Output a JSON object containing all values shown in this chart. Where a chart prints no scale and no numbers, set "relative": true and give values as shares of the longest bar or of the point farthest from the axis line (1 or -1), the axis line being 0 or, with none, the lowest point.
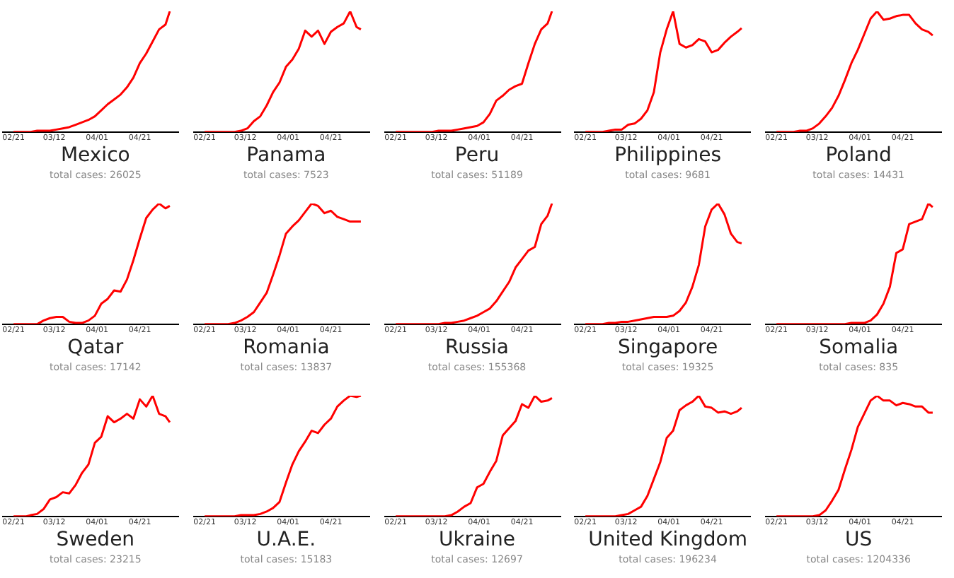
{
  "chart_data": [
    {
      "type": "line",
      "title": "Mexico",
      "subtitle": "total cases: 26025",
      "relative": true,
      "x": [
        "--02-21",
        "--02-24",
        "--02-27",
        "--03-01",
        "--03-04",
        "--03-07",
        "--03-10",
        "--03-13",
        "--03-16",
        "--03-19",
        "--03-22",
        "--03-25",
        "--03-28",
        "--03-31",
        "--04-03",
        "--04-06",
        "--04-09",
        "--04-12",
        "--04-15",
        "--04-18",
        "--04-21",
        "--04-24",
        "--04-27",
        "--04-30",
        "--05-03",
        "--05-05"
      ],
      "xlim": [
        "--02-16",
        "--05-09"
      ],
      "xticks": [
        {
          "value": "--02-21",
          "label": "02/21"
        },
        {
          "value": "--03-12",
          "label": "03/12"
        },
        {
          "value": "--04-01",
          "label": "04/01"
        },
        {
          "value": "--04-21",
          "label": "04/21"
        }
      ],
      "series": [
        {
          "color": "#ff0000",
          "values": [
            0,
            0,
            0,
            0,
            0.01,
            0.01,
            0.01,
            0.02,
            0.03,
            0.04,
            0.06,
            0.08,
            0.1,
            0.13,
            0.18,
            0.23,
            0.27,
            0.31,
            0.37,
            0.45,
            0.57,
            0.65,
            0.75,
            0.85,
            0.89,
            1
          ]
        }
      ]
    },
    {
      "type": "line",
      "title": "Panama",
      "subtitle": "total cases: 7523",
      "relative": true,
      "x": [
        "--02-21",
        "--02-24",
        "--02-27",
        "--03-01",
        "--03-04",
        "--03-07",
        "--03-10",
        "--03-13",
        "--03-16",
        "--03-19",
        "--03-22",
        "--03-25",
        "--03-28",
        "--03-31",
        "--04-03",
        "--04-06",
        "--04-09",
        "--04-12",
        "--04-15",
        "--04-18",
        "--04-21",
        "--04-24",
        "--04-27",
        "--04-30",
        "--05-03",
        "--05-05"
      ],
      "xlim": [
        "--02-16",
        "--05-09"
      ],
      "xticks": [
        {
          "value": "--02-21",
          "label": "02/21"
        },
        {
          "value": "--03-12",
          "label": "03/12"
        },
        {
          "value": "--04-01",
          "label": "04/01"
        },
        {
          "value": "--04-21",
          "label": "04/21"
        }
      ],
      "series": [
        {
          "color": "#ff0000",
          "values": [
            0,
            0,
            0,
            0,
            0,
            0,
            0.01,
            0.03,
            0.09,
            0.13,
            0.22,
            0.33,
            0.41,
            0.54,
            0.6,
            0.69,
            0.84,
            0.79,
            0.84,
            0.73,
            0.83,
            0.87,
            0.9,
            1,
            0.87,
            0.85
          ]
        }
      ]
    },
    {
      "type": "line",
      "title": "Peru",
      "subtitle": "total cases: 51189",
      "relative": true,
      "x": [
        "--02-21",
        "--02-24",
        "--02-27",
        "--03-01",
        "--03-04",
        "--03-07",
        "--03-10",
        "--03-13",
        "--03-16",
        "--03-19",
        "--03-22",
        "--03-25",
        "--03-28",
        "--03-31",
        "--04-03",
        "--04-06",
        "--04-09",
        "--04-12",
        "--04-15",
        "--04-18",
        "--04-21",
        "--04-24",
        "--04-27",
        "--04-30",
        "--05-03",
        "--05-05"
      ],
      "xlim": [
        "--02-16",
        "--05-09"
      ],
      "xticks": [
        {
          "value": "--02-21",
          "label": "02/21"
        },
        {
          "value": "--03-12",
          "label": "03/12"
        },
        {
          "value": "--04-01",
          "label": "04/01"
        },
        {
          "value": "--04-21",
          "label": "04/21"
        }
      ],
      "series": [
        {
          "color": "#ff0000",
          "values": [
            0,
            0,
            0,
            0,
            0,
            0,
            0,
            0.01,
            0.01,
            0.01,
            0.02,
            0.03,
            0.04,
            0.05,
            0.08,
            0.15,
            0.26,
            0.3,
            0.35,
            0.38,
            0.4,
            0.57,
            0.73,
            0.85,
            0.9,
            1
          ]
        }
      ]
    },
    {
      "type": "line",
      "title": "Philippines",
      "subtitle": "total cases: 9681",
      "relative": true,
      "x": [
        "--02-21",
        "--02-24",
        "--02-27",
        "--03-01",
        "--03-04",
        "--03-07",
        "--03-10",
        "--03-13",
        "--03-16",
        "--03-19",
        "--03-22",
        "--03-25",
        "--03-28",
        "--03-31",
        "--04-03",
        "--04-06",
        "--04-09",
        "--04-12",
        "--04-15",
        "--04-18",
        "--04-21",
        "--04-24",
        "--04-27",
        "--04-30",
        "--05-03",
        "--05-05"
      ],
      "xlim": [
        "--02-16",
        "--05-09"
      ],
      "xticks": [
        {
          "value": "--02-21",
          "label": "02/21"
        },
        {
          "value": "--03-12",
          "label": "03/12"
        },
        {
          "value": "--04-01",
          "label": "04/01"
        },
        {
          "value": "--04-21",
          "label": "04/21"
        }
      ],
      "series": [
        {
          "color": "#ff0000",
          "values": [
            0,
            0,
            0,
            0,
            0.01,
            0.02,
            0.02,
            0.06,
            0.07,
            0.11,
            0.18,
            0.33,
            0.66,
            0.85,
            1,
            0.73,
            0.7,
            0.72,
            0.77,
            0.75,
            0.66,
            0.68,
            0.74,
            0.79,
            0.83,
            0.86
          ]
        }
      ]
    },
    {
      "type": "line",
      "title": "Poland",
      "subtitle": "total cases: 14431",
      "relative": true,
      "x": [
        "--02-21",
        "--02-24",
        "--02-27",
        "--03-01",
        "--03-04",
        "--03-07",
        "--03-10",
        "--03-13",
        "--03-16",
        "--03-19",
        "--03-22",
        "--03-25",
        "--03-28",
        "--03-31",
        "--04-03",
        "--04-06",
        "--04-09",
        "--04-12",
        "--04-15",
        "--04-18",
        "--04-21",
        "--04-24",
        "--04-27",
        "--04-30",
        "--05-03",
        "--05-05"
      ],
      "xlim": [
        "--02-16",
        "--05-09"
      ],
      "xticks": [
        {
          "value": "--02-21",
          "label": "02/21"
        },
        {
          "value": "--03-12",
          "label": "03/12"
        },
        {
          "value": "--04-01",
          "label": "04/01"
        },
        {
          "value": "--04-21",
          "label": "04/21"
        }
      ],
      "series": [
        {
          "color": "#ff0000",
          "values": [
            0,
            0,
            0,
            0,
            0.01,
            0.01,
            0.03,
            0.07,
            0.13,
            0.2,
            0.3,
            0.43,
            0.57,
            0.68,
            0.81,
            0.94,
            1,
            0.93,
            0.94,
            0.96,
            0.97,
            0.97,
            0.9,
            0.85,
            0.83,
            0.8
          ]
        }
      ]
    },
    {
      "type": "line",
      "title": "Qatar",
      "subtitle": "total cases: 17142",
      "relative": true,
      "x": [
        "--02-21",
        "--02-24",
        "--02-27",
        "--03-01",
        "--03-04",
        "--03-07",
        "--03-10",
        "--03-13",
        "--03-16",
        "--03-19",
        "--03-22",
        "--03-25",
        "--03-28",
        "--03-31",
        "--04-03",
        "--04-06",
        "--04-09",
        "--04-12",
        "--04-15",
        "--04-18",
        "--04-21",
        "--04-24",
        "--04-27",
        "--04-30",
        "--05-03",
        "--05-05"
      ],
      "xlim": [
        "--02-16",
        "--05-09"
      ],
      "xticks": [
        {
          "value": "--02-21",
          "label": "02/21"
        },
        {
          "value": "--03-12",
          "label": "03/12"
        },
        {
          "value": "--04-01",
          "label": "04/01"
        },
        {
          "value": "--04-21",
          "label": "04/21"
        }
      ],
      "series": [
        {
          "color": "#ff0000",
          "values": [
            0,
            0,
            0,
            0,
            0,
            0.03,
            0.05,
            0.06,
            0.06,
            0.02,
            0.01,
            0.01,
            0.03,
            0.07,
            0.17,
            0.21,
            0.28,
            0.27,
            0.37,
            0.53,
            0.71,
            0.88,
            0.95,
            1,
            0.96,
            0.98
          ]
        }
      ]
    },
    {
      "type": "line",
      "title": "Romania",
      "subtitle": "total cases: 13837",
      "relative": true,
      "x": [
        "--02-21",
        "--02-24",
        "--02-27",
        "--03-01",
        "--03-04",
        "--03-07",
        "--03-10",
        "--03-13",
        "--03-16",
        "--03-19",
        "--03-22",
        "--03-25",
        "--03-28",
        "--03-31",
        "--04-03",
        "--04-06",
        "--04-09",
        "--04-12",
        "--04-15",
        "--04-18",
        "--04-21",
        "--04-24",
        "--04-27",
        "--04-30",
        "--05-03",
        "--05-05"
      ],
      "xlim": [
        "--02-16",
        "--05-09"
      ],
      "xticks": [
        {
          "value": "--02-21",
          "label": "02/21"
        },
        {
          "value": "--03-12",
          "label": "03/12"
        },
        {
          "value": "--04-01",
          "label": "04/01"
        },
        {
          "value": "--04-21",
          "label": "04/21"
        }
      ],
      "series": [
        {
          "color": "#ff0000",
          "values": [
            0,
            0,
            0,
            0,
            0,
            0.01,
            0.03,
            0.06,
            0.1,
            0.18,
            0.26,
            0.41,
            0.57,
            0.75,
            0.81,
            0.86,
            0.93,
            1,
            0.98,
            0.92,
            0.94,
            0.89,
            0.87,
            0.85,
            0.85,
            0.85
          ]
        }
      ]
    },
    {
      "type": "line",
      "title": "Russia",
      "subtitle": "total cases: 155368",
      "relative": true,
      "x": [
        "--02-21",
        "--02-24",
        "--02-27",
        "--03-01",
        "--03-04",
        "--03-07",
        "--03-10",
        "--03-13",
        "--03-16",
        "--03-19",
        "--03-22",
        "--03-25",
        "--03-28",
        "--03-31",
        "--04-03",
        "--04-06",
        "--04-09",
        "--04-12",
        "--04-15",
        "--04-18",
        "--04-21",
        "--04-24",
        "--04-27",
        "--04-30",
        "--05-03",
        "--05-05"
      ],
      "xlim": [
        "--02-16",
        "--05-09"
      ],
      "xticks": [
        {
          "value": "--02-21",
          "label": "02/21"
        },
        {
          "value": "--03-12",
          "label": "03/12"
        },
        {
          "value": "--04-01",
          "label": "04/01"
        },
        {
          "value": "--04-21",
          "label": "04/21"
        }
      ],
      "series": [
        {
          "color": "#ff0000",
          "values": [
            0,
            0,
            0,
            0,
            0,
            0,
            0,
            0,
            0.01,
            0.01,
            0.02,
            0.03,
            0.05,
            0.07,
            0.1,
            0.13,
            0.19,
            0.27,
            0.35,
            0.47,
            0.54,
            0.61,
            0.64,
            0.83,
            0.9,
            1
          ]
        }
      ]
    },
    {
      "type": "line",
      "title": "Singapore",
      "subtitle": "total cases: 19325",
      "relative": true,
      "x": [
        "--02-21",
        "--02-24",
        "--02-27",
        "--03-01",
        "--03-04",
        "--03-07",
        "--03-10",
        "--03-13",
        "--03-16",
        "--03-19",
        "--03-22",
        "--03-25",
        "--03-28",
        "--03-31",
        "--04-03",
        "--04-06",
        "--04-09",
        "--04-12",
        "--04-15",
        "--04-18",
        "--04-21",
        "--04-24",
        "--04-27",
        "--04-30",
        "--05-03",
        "--05-05"
      ],
      "xlim": [
        "--02-16",
        "--05-09"
      ],
      "xticks": [
        {
          "value": "--02-21",
          "label": "02/21"
        },
        {
          "value": "--03-12",
          "label": "03/12"
        },
        {
          "value": "--04-01",
          "label": "04/01"
        },
        {
          "value": "--04-21",
          "label": "04/21"
        }
      ],
      "series": [
        {
          "color": "#ff0000",
          "values": [
            0,
            0,
            0,
            0,
            0.01,
            0.01,
            0.02,
            0.02,
            0.03,
            0.04,
            0.05,
            0.06,
            0.06,
            0.06,
            0.07,
            0.11,
            0.18,
            0.31,
            0.49,
            0.81,
            0.95,
            1,
            0.91,
            0.75,
            0.68,
            0.67
          ]
        }
      ]
    },
    {
      "type": "line",
      "title": "Somalia",
      "subtitle": "total cases: 835",
      "relative": true,
      "x": [
        "--02-21",
        "--02-24",
        "--02-27",
        "--03-01",
        "--03-04",
        "--03-07",
        "--03-10",
        "--03-13",
        "--03-16",
        "--03-19",
        "--03-22",
        "--03-25",
        "--03-28",
        "--03-31",
        "--04-03",
        "--04-06",
        "--04-09",
        "--04-12",
        "--04-15",
        "--04-18",
        "--04-21",
        "--04-24",
        "--04-27",
        "--04-30",
        "--05-03",
        "--05-05"
      ],
      "xlim": [
        "--02-16",
        "--05-09"
      ],
      "xticks": [
        {
          "value": "--02-21",
          "label": "02/21"
        },
        {
          "value": "--03-12",
          "label": "03/12"
        },
        {
          "value": "--04-01",
          "label": "04/01"
        },
        {
          "value": "--04-21",
          "label": "04/21"
        }
      ],
      "series": [
        {
          "color": "#ff0000",
          "values": [
            0,
            0,
            0,
            0,
            0,
            0,
            0,
            0,
            0,
            0,
            0,
            0,
            0.01,
            0.01,
            0.01,
            0.03,
            0.08,
            0.17,
            0.31,
            0.59,
            0.62,
            0.83,
            0.85,
            0.87,
            1,
            0.97
          ]
        }
      ]
    },
    {
      "type": "line",
      "title": "Sweden",
      "subtitle": "total cases: 23215",
      "relative": true,
      "x": [
        "--02-21",
        "--02-24",
        "--02-27",
        "--03-01",
        "--03-04",
        "--03-07",
        "--03-10",
        "--03-13",
        "--03-16",
        "--03-19",
        "--03-22",
        "--03-25",
        "--03-28",
        "--03-31",
        "--04-03",
        "--04-06",
        "--04-09",
        "--04-12",
        "--04-15",
        "--04-18",
        "--04-21",
        "--04-24",
        "--04-27",
        "--04-30",
        "--05-03",
        "--05-05"
      ],
      "xlim": [
        "--02-16",
        "--05-09"
      ],
      "xticks": [
        {
          "value": "--02-21",
          "label": "02/21"
        },
        {
          "value": "--03-12",
          "label": "03/12"
        },
        {
          "value": "--04-01",
          "label": "04/01"
        },
        {
          "value": "--04-21",
          "label": "04/21"
        }
      ],
      "series": [
        {
          "color": "#ff0000",
          "values": [
            0,
            0,
            0,
            0.01,
            0.02,
            0.06,
            0.14,
            0.16,
            0.2,
            0.19,
            0.26,
            0.36,
            0.43,
            0.61,
            0.66,
            0.83,
            0.78,
            0.81,
            0.85,
            0.81,
            0.97,
            0.91,
            1,
            0.85,
            0.83,
            0.78
          ]
        }
      ]
    },
    {
      "type": "line",
      "title": "U.A.E.",
      "subtitle": "total cases: 15183",
      "relative": true,
      "x": [
        "--02-21",
        "--02-24",
        "--02-27",
        "--03-01",
        "--03-04",
        "--03-07",
        "--03-10",
        "--03-13",
        "--03-16",
        "--03-19",
        "--03-22",
        "--03-25",
        "--03-28",
        "--03-31",
        "--04-03",
        "--04-06",
        "--04-09",
        "--04-12",
        "--04-15",
        "--04-18",
        "--04-21",
        "--04-24",
        "--04-27",
        "--04-30",
        "--05-03",
        "--05-05"
      ],
      "xlim": [
        "--02-16",
        "--05-09"
      ],
      "xticks": [
        {
          "value": "--02-21",
          "label": "02/21"
        },
        {
          "value": "--03-12",
          "label": "03/12"
        },
        {
          "value": "--04-01",
          "label": "04/01"
        },
        {
          "value": "--04-21",
          "label": "04/21"
        }
      ],
      "series": [
        {
          "color": "#ff0000",
          "values": [
            0,
            0,
            0,
            0,
            0,
            0,
            0.01,
            0.01,
            0.01,
            0.02,
            0.04,
            0.07,
            0.12,
            0.28,
            0.43,
            0.54,
            0.62,
            0.71,
            0.69,
            0.76,
            0.81,
            0.91,
            0.96,
            1,
            0.99,
            1
          ]
        }
      ]
    },
    {
      "type": "line",
      "title": "Ukraine",
      "subtitle": "total cases: 12697",
      "relative": true,
      "x": [
        "--02-21",
        "--02-24",
        "--02-27",
        "--03-01",
        "--03-04",
        "--03-07",
        "--03-10",
        "--03-13",
        "--03-16",
        "--03-19",
        "--03-22",
        "--03-25",
        "--03-28",
        "--03-31",
        "--04-03",
        "--04-06",
        "--04-09",
        "--04-12",
        "--04-15",
        "--04-18",
        "--04-21",
        "--04-24",
        "--04-27",
        "--04-30",
        "--05-03",
        "--05-05"
      ],
      "xlim": [
        "--02-16",
        "--05-09"
      ],
      "xticks": [
        {
          "value": "--02-21",
          "label": "02/21"
        },
        {
          "value": "--03-12",
          "label": "03/12"
        },
        {
          "value": "--04-01",
          "label": "04/01"
        },
        {
          "value": "--04-21",
          "label": "04/21"
        }
      ],
      "series": [
        {
          "color": "#ff0000",
          "values": [
            0,
            0,
            0,
            0,
            0,
            0,
            0,
            0,
            0,
            0.01,
            0.04,
            0.08,
            0.11,
            0.24,
            0.27,
            0.37,
            0.46,
            0.67,
            0.73,
            0.79,
            0.93,
            0.9,
            1,
            0.95,
            0.96,
            0.98
          ]
        }
      ]
    },
    {
      "type": "line",
      "title": "United Kingdom",
      "subtitle": "total cases: 196234",
      "relative": true,
      "x": [
        "--02-21",
        "--02-24",
        "--02-27",
        "--03-01",
        "--03-04",
        "--03-07",
        "--03-10",
        "--03-13",
        "--03-16",
        "--03-19",
        "--03-22",
        "--03-25",
        "--03-28",
        "--03-31",
        "--04-03",
        "--04-06",
        "--04-09",
        "--04-12",
        "--04-15",
        "--04-18",
        "--04-21",
        "--04-24",
        "--04-27",
        "--04-30",
        "--05-03",
        "--05-05"
      ],
      "xlim": [
        "--02-16",
        "--05-09"
      ],
      "xticks": [
        {
          "value": "--02-21",
          "label": "02/21"
        },
        {
          "value": "--03-12",
          "label": "03/12"
        },
        {
          "value": "--04-01",
          "label": "04/01"
        },
        {
          "value": "--04-21",
          "label": "04/21"
        }
      ],
      "series": [
        {
          "color": "#ff0000",
          "values": [
            0,
            0,
            0,
            0,
            0,
            0,
            0.01,
            0.02,
            0.05,
            0.08,
            0.17,
            0.31,
            0.45,
            0.65,
            0.71,
            0.88,
            0.92,
            0.95,
            1,
            0.91,
            0.9,
            0.86,
            0.87,
            0.85,
            0.87,
            0.9
          ]
        }
      ]
    },
    {
      "type": "line",
      "title": "US",
      "subtitle": "total cases: 1204336",
      "relative": true,
      "x": [
        "--02-21",
        "--02-24",
        "--02-27",
        "--03-01",
        "--03-04",
        "--03-07",
        "--03-10",
        "--03-13",
        "--03-16",
        "--03-19",
        "--03-22",
        "--03-25",
        "--03-28",
        "--03-31",
        "--04-03",
        "--04-06",
        "--04-09",
        "--04-12",
        "--04-15",
        "--04-18",
        "--04-21",
        "--04-24",
        "--04-27",
        "--04-30",
        "--05-03",
        "--05-05"
      ],
      "xlim": [
        "--02-16",
        "--05-09"
      ],
      "xticks": [
        {
          "value": "--02-21",
          "label": "02/21"
        },
        {
          "value": "--03-12",
          "label": "03/12"
        },
        {
          "value": "--04-01",
          "label": "04/01"
        },
        {
          "value": "--04-21",
          "label": "04/21"
        }
      ],
      "series": [
        {
          "color": "#ff0000",
          "values": [
            0,
            0,
            0,
            0,
            0,
            0,
            0,
            0.01,
            0.05,
            0.13,
            0.22,
            0.39,
            0.55,
            0.74,
            0.85,
            0.96,
            1,
            0.96,
            0.96,
            0.92,
            0.94,
            0.93,
            0.91,
            0.91,
            0.86,
            0.86
          ]
        }
      ]
    }
  ]
}
